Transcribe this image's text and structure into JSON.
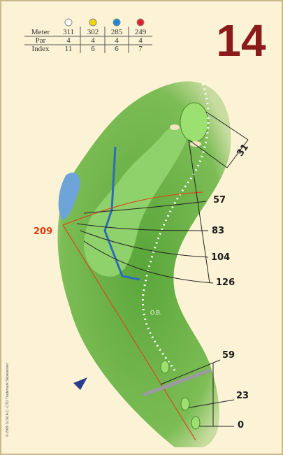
{
  "hole": "14",
  "scorecard": {
    "rows": [
      [
        "Meter",
        "311",
        "302",
        "285",
        "249"
      ],
      [
        "Par",
        "4",
        "4",
        "4",
        "4"
      ],
      [
        "Index",
        "11",
        "6",
        "6",
        "7"
      ]
    ]
  },
  "distances": {
    "green_depth": "31",
    "lay_up": "209",
    "arcs": [
      "57",
      "83",
      "104",
      "126"
    ],
    "tee_marks": [
      "59",
      "23",
      "0"
    ]
  },
  "out_of_bounds": "O.B.",
  "copyright": "© 2009 S.I.M.A.C.-CTO Trademark Skoleserver"
}
